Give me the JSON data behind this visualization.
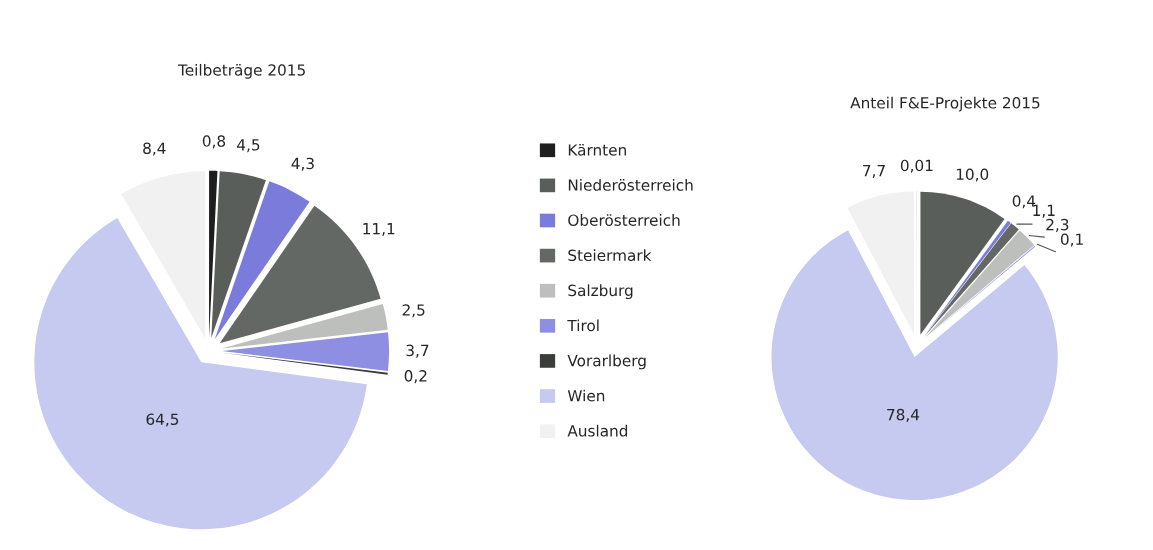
{
  "chart_data": [
    {
      "type": "pie",
      "title": "Teilbeträge 2015",
      "categories": [
        "Kärnten",
        "Niederösterreich",
        "Oberösterreich",
        "Steiermark",
        "Salzburg",
        "Tirol",
        "Vorarlberg",
        "Wien",
        "Ausland"
      ],
      "values": [
        0.8,
        4.5,
        4.3,
        11.1,
        2.5,
        3.7,
        0.2,
        64.5,
        8.4
      ],
      "value_labels": [
        "0,8",
        "4,5",
        "4,3",
        "11,1",
        "2,5",
        "3,7",
        "0,2",
        "64,5",
        "8,4"
      ],
      "colors": [
        "#1e1e1e",
        "#5a5e5a",
        "#7b7bdc",
        "#646864",
        "#bcbfbc",
        "#8e8ee2",
        "#3a3d3a",
        "#c6c9f0",
        "#f1f1f1"
      ],
      "legend": "right"
    },
    {
      "type": "pie",
      "title": "Anteil F&E-Projekte 2015",
      "categories": [
        null,
        null,
        null,
        null,
        null,
        null,
        null,
        null
      ],
      "values": [
        0.01,
        10.0,
        0.4,
        1.1,
        2.3,
        0.1,
        78.4,
        7.7
      ],
      "value_labels": [
        "0,01",
        "10,0",
        "0,4",
        "1,1",
        "2,3",
        "0,1",
        "78,4",
        "7,7"
      ],
      "colors": [
        "#1e1e1e",
        "#5a5e5a",
        "#7b7bdc",
        "#646864",
        "#bcbfbc",
        "#8e8ee2",
        "#c6c9f0",
        "#f1f1f1"
      ]
    }
  ]
}
